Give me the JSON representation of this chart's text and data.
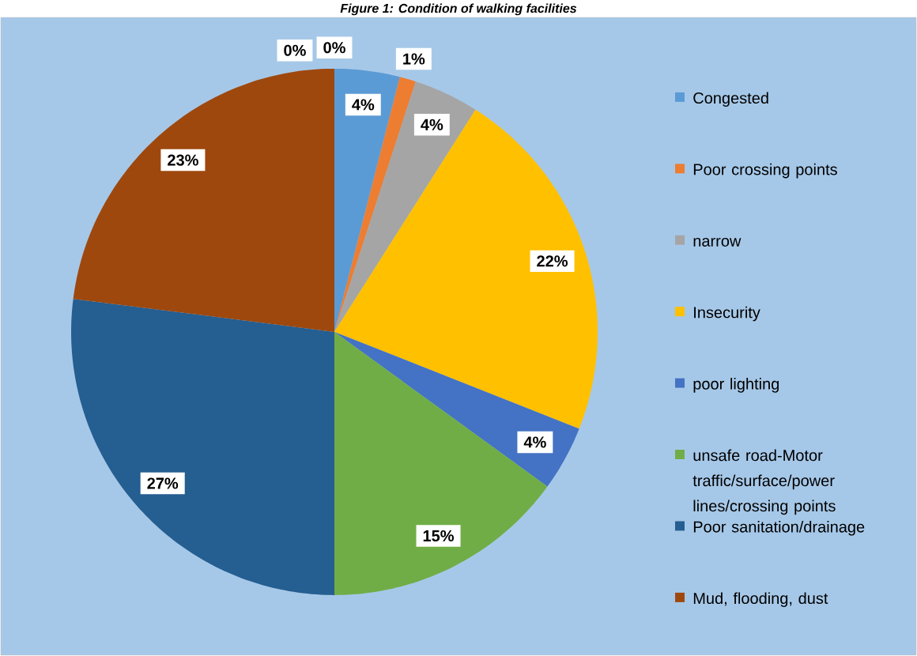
{
  "chart_data": {
    "type": "pie",
    "title": "Figure 1: Condition of walking facilities",
    "categories": [
      "Congested",
      "Poor crossing points",
      "narrow",
      "Insecurity",
      "poor lighting",
      "unsafe road-Motor traffic/surface/power lines/crossing points",
      "Poor sanitation/drainage",
      "Mud, flooding, dust",
      null,
      null
    ],
    "values": [
      4,
      1,
      4,
      22,
      4,
      15,
      27,
      23,
      0,
      0
    ],
    "value_labels": [
      "4%",
      "1%",
      "4%",
      "22%",
      "4%",
      "15%",
      "27%",
      "23%",
      "0%",
      "0%"
    ],
    "colors": [
      "#5b9bd5",
      "#ed7d31",
      "#a5a5a5",
      "#ffc000",
      "#4472c4",
      "#70ad47",
      "#255e91",
      "#9e480e",
      "#264478",
      "#636363"
    ],
    "legend": "right"
  }
}
